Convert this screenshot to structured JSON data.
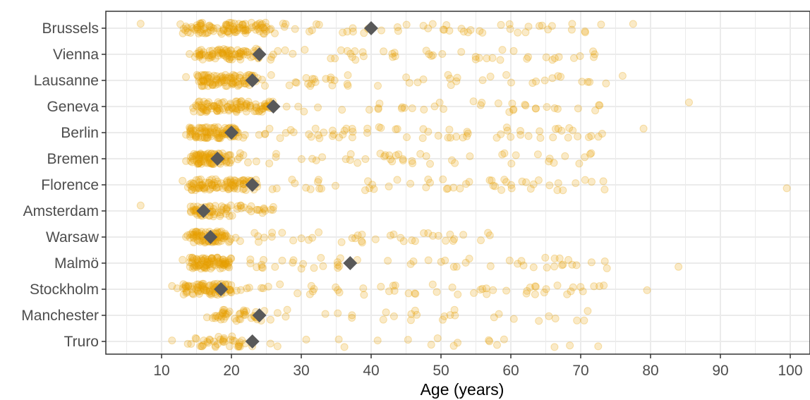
{
  "chart_data": {
    "type": "scatter",
    "title": "",
    "xlabel": "Age (years)",
    "ylabel": "",
    "xlim": [
      3,
      101.5
    ],
    "xticks": [
      10,
      20,
      30,
      40,
      50,
      60,
      70,
      80,
      90,
      100
    ],
    "grid": true,
    "legend": "none",
    "categories": [
      "Brussels",
      "Vienna",
      "Lausanne",
      "Geneva",
      "Berlin",
      "Bremen",
      "Florence",
      "Amsterdam",
      "Warsaw",
      "Malmö",
      "Stockholm",
      "Manchester",
      "Truro"
    ],
    "medians": [
      {
        "city": "Brussels",
        "age": 40
      },
      {
        "city": "Vienna",
        "age": 24
      },
      {
        "city": "Lausanne",
        "age": 23
      },
      {
        "city": "Geneva",
        "age": 26
      },
      {
        "city": "Berlin",
        "age": 20
      },
      {
        "city": "Bremen",
        "age": 18
      },
      {
        "city": "Florence",
        "age": 23
      },
      {
        "city": "Amsterdam",
        "age": 16
      },
      {
        "city": "Warsaw",
        "age": 17
      },
      {
        "city": "Malmö",
        "age": 37
      },
      {
        "city": "Stockholm",
        "age": 18.5
      },
      {
        "city": "Manchester",
        "age": 24
      },
      {
        "city": "Truro",
        "age": 23
      }
    ],
    "distributions": [
      {
        "city": "Brussels",
        "min": 7,
        "max": 77.5,
        "count": 150,
        "dense_low": 13,
        "dense_high": 25
      },
      {
        "city": "Vienna",
        "min": 14,
        "max": 72,
        "count": 130,
        "dense_low": 15,
        "dense_high": 24
      },
      {
        "city": "Lausanne",
        "min": 13.5,
        "max": 76,
        "count": 140,
        "dense_low": 15,
        "dense_high": 24
      },
      {
        "city": "Geneva",
        "min": 14.5,
        "max": 85.5,
        "count": 140,
        "dense_low": 15,
        "dense_high": 26
      },
      {
        "city": "Berlin",
        "min": 13.5,
        "max": 79,
        "count": 160,
        "dense_low": 14,
        "dense_high": 21
      },
      {
        "city": "Bremen",
        "min": 13.5,
        "max": 71.5,
        "count": 130,
        "dense_low": 14,
        "dense_high": 20
      },
      {
        "city": "Florence",
        "min": 13,
        "max": 99.5,
        "count": 150,
        "dense_low": 14,
        "dense_high": 24
      },
      {
        "city": "Amsterdam",
        "min": 7,
        "max": 26,
        "count": 70,
        "dense_low": 14,
        "dense_high": 19
      },
      {
        "city": "Warsaw",
        "min": 13.5,
        "max": 57,
        "count": 120,
        "dense_low": 14,
        "dense_high": 20
      },
      {
        "city": "Malmö",
        "min": 13,
        "max": 84,
        "count": 140,
        "dense_low": 14,
        "dense_high": 20
      },
      {
        "city": "Stockholm",
        "min": 11.5,
        "max": 79.5,
        "count": 140,
        "dense_low": 13,
        "dense_high": 20
      },
      {
        "city": "Manchester",
        "min": 16.5,
        "max": 71,
        "count": 70,
        "dense_low": 17,
        "dense_high": 24
      },
      {
        "city": "Truro",
        "min": 11.5,
        "max": 72.5,
        "count": 60,
        "dense_low": 14,
        "dense_high": 23
      }
    ],
    "colors": {
      "points": "#E69F00",
      "median_marker": "#595959",
      "grid": "#ebebeb",
      "panel_border": "#333333"
    }
  }
}
